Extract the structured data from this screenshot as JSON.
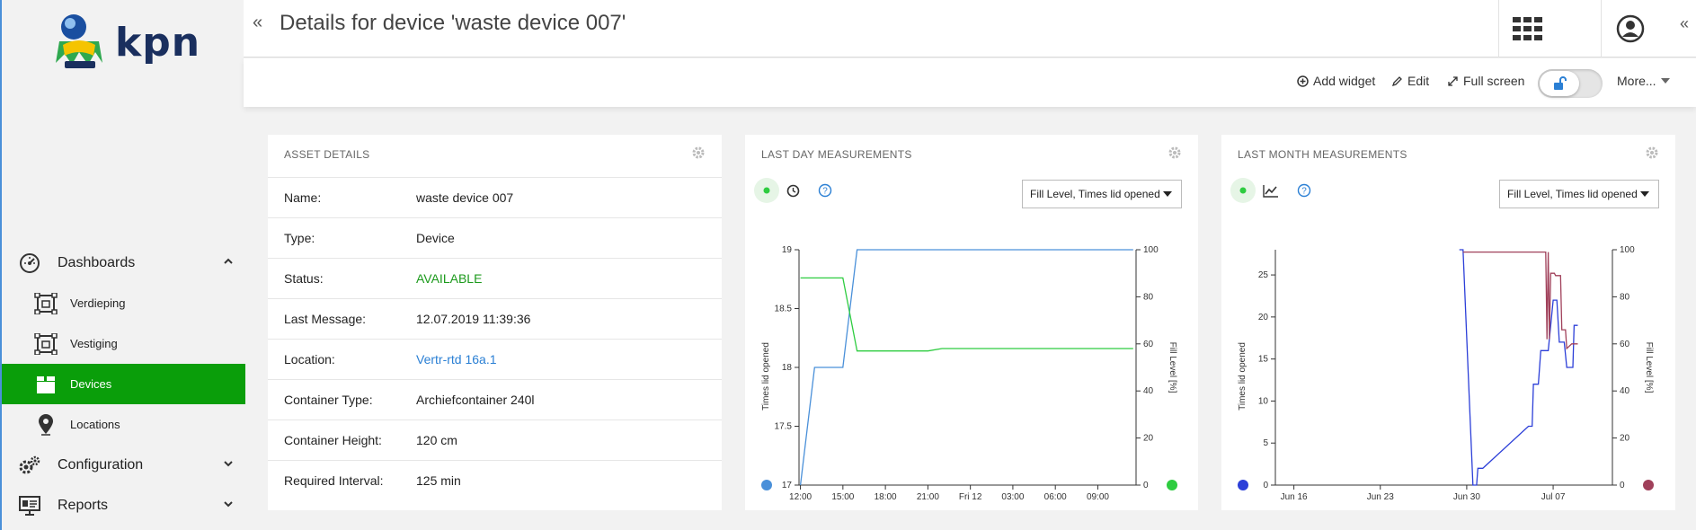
{
  "header": {
    "title": "Details for device 'waste device 007'",
    "collapse_left": "«",
    "collapse_right": "«"
  },
  "logo": {
    "text": "kpn"
  },
  "sidebar": {
    "items": [
      {
        "label": "Dashboards",
        "level": "top",
        "icon": "dashboard-gauge-icon",
        "chevron": "up"
      },
      {
        "label": "Verdieping",
        "level": "sub",
        "icon": "floorplan-icon"
      },
      {
        "label": "Vestiging",
        "level": "sub",
        "icon": "floorplan-icon"
      },
      {
        "label": "Devices",
        "level": "sub",
        "icon": "device-box-icon",
        "active": true
      },
      {
        "label": "Locations",
        "level": "sub",
        "icon": "map-pin-icon"
      },
      {
        "label": "Configuration",
        "level": "top",
        "icon": "gears-icon",
        "chevron": "down"
      },
      {
        "label": "Reports",
        "level": "top",
        "icon": "presentation-icon",
        "chevron": "down"
      }
    ]
  },
  "toolbar": {
    "add_widget": "Add widget",
    "edit": "Edit",
    "full_screen": "Full screen",
    "more": "More..."
  },
  "asset_details": {
    "title": "ASSET DETAILS",
    "rows": [
      {
        "key": "Name:",
        "value": "waste device 007",
        "style": "plain"
      },
      {
        "key": "Type:",
        "value": "Device",
        "style": "plain"
      },
      {
        "key": "Status:",
        "value": "AVAILABLE",
        "style": "ok"
      },
      {
        "key": "Last Message:",
        "value": "12.07.2019 11:39:36",
        "style": "plain"
      },
      {
        "key": "Location:",
        "value": "Vertr-rtd 16a.1",
        "style": "link"
      },
      {
        "key": "Container Type:",
        "value": "Archiefcontainer 240l",
        "style": "plain"
      },
      {
        "key": "Container Height:",
        "value": "120 cm",
        "style": "plain"
      },
      {
        "key": "Required Interval:",
        "value": "125 min",
        "style": "plain"
      }
    ]
  },
  "last_day": {
    "title": "LAST DAY MEASUREMENTS",
    "select": "Fill Level, Times lid opened"
  },
  "last_month": {
    "title": "LAST MONTH MEASUREMENTS",
    "select": "Fill Level, Times lid opened"
  },
  "colors": {
    "brand_green": "#0a9e0a",
    "kpn_navy": "#1a2f5e",
    "series_blue_day": "#4a90d9",
    "series_green": "#2ecc40",
    "series_blue_month": "#2c3fd8",
    "series_red_month": "#a0405a"
  },
  "chart_data": [
    {
      "type": "line",
      "name": "Last day measurements",
      "ylabel": "Times lid opened",
      "y2label": "Fill Level [%]",
      "ylim": [
        17,
        19
      ],
      "y2lim": [
        0,
        100
      ],
      "yticks": [
        17,
        17.5,
        18,
        18.5,
        19
      ],
      "y2ticks": [
        0,
        20,
        40,
        60,
        80,
        100
      ],
      "xticks": [
        "12:00",
        "15:00",
        "18:00",
        "21:00",
        "Fri 12",
        "03:00",
        "06:00",
        "09:00"
      ],
      "xrange_hours": [
        -0.1,
        23.7
      ],
      "series": [
        {
          "axis": "left",
          "color": "#4a90d9",
          "points": [
            [
              0,
              17
            ],
            [
              1,
              18
            ],
            [
              3,
              18
            ],
            [
              4,
              19
            ],
            [
              23.5,
              19
            ]
          ]
        },
        {
          "axis": "right",
          "color": "#2ecc40",
          "points": [
            [
              0,
              88
            ],
            [
              3,
              88
            ],
            [
              4,
              57
            ],
            [
              9,
              57
            ],
            [
              10,
              58
            ],
            [
              23.5,
              58
            ]
          ]
        }
      ],
      "legend_markers": {
        "left": "#4a90d9",
        "right": "#2ecc40"
      }
    },
    {
      "type": "line",
      "name": "Last month measurements",
      "ylabel": "Times lid opened",
      "y2label": "Fill Level [%]",
      "ylim": [
        0,
        28
      ],
      "y2lim": [
        0,
        100
      ],
      "yticks": [
        0,
        5,
        10,
        15,
        20,
        25
      ],
      "y2ticks": [
        0,
        20,
        40,
        60,
        80,
        100
      ],
      "xticks": [
        "Jun 16",
        "Jun 23",
        "Jun 30",
        "Jul 07"
      ],
      "xrange_days": [
        -0.5,
        26.8
      ],
      "series": [
        {
          "axis": "left",
          "color": "#2c3fd8",
          "points": [
            [
              14.4,
              28
            ],
            [
              14.7,
              28
            ],
            [
              15.5,
              0
            ],
            [
              15.8,
              0
            ],
            [
              15.9,
              2
            ],
            [
              16.3,
              2
            ],
            [
              20,
              7
            ],
            [
              20.3,
              7
            ],
            [
              20.4,
              12
            ],
            [
              20.8,
              12
            ],
            [
              21,
              16
            ],
            [
              21.6,
              16
            ],
            [
              22,
              22
            ],
            [
              22.3,
              22
            ],
            [
              22.5,
              17
            ],
            [
              22.9,
              17
            ],
            [
              23.1,
              14
            ],
            [
              23.6,
              14
            ],
            [
              23.7,
              19
            ],
            [
              24.0,
              19
            ]
          ]
        },
        {
          "axis": "right",
          "color": "#a0405a",
          "points": [
            [
              14.7,
              99
            ],
            [
              21.4,
              99
            ],
            [
              21.5,
              62
            ],
            [
              21.6,
              99
            ],
            [
              21.7,
              62
            ],
            [
              21.8,
              90
            ],
            [
              22.1,
              90
            ],
            [
              22.2,
              89
            ],
            [
              22.6,
              89
            ],
            [
              22.7,
              66
            ],
            [
              23.0,
              66
            ],
            [
              23.1,
              58
            ],
            [
              23.5,
              60
            ],
            [
              24.0,
              60
            ]
          ]
        }
      ],
      "legend_markers": {
        "left": "#2c3fd8",
        "right": "#a0405a"
      }
    }
  ]
}
